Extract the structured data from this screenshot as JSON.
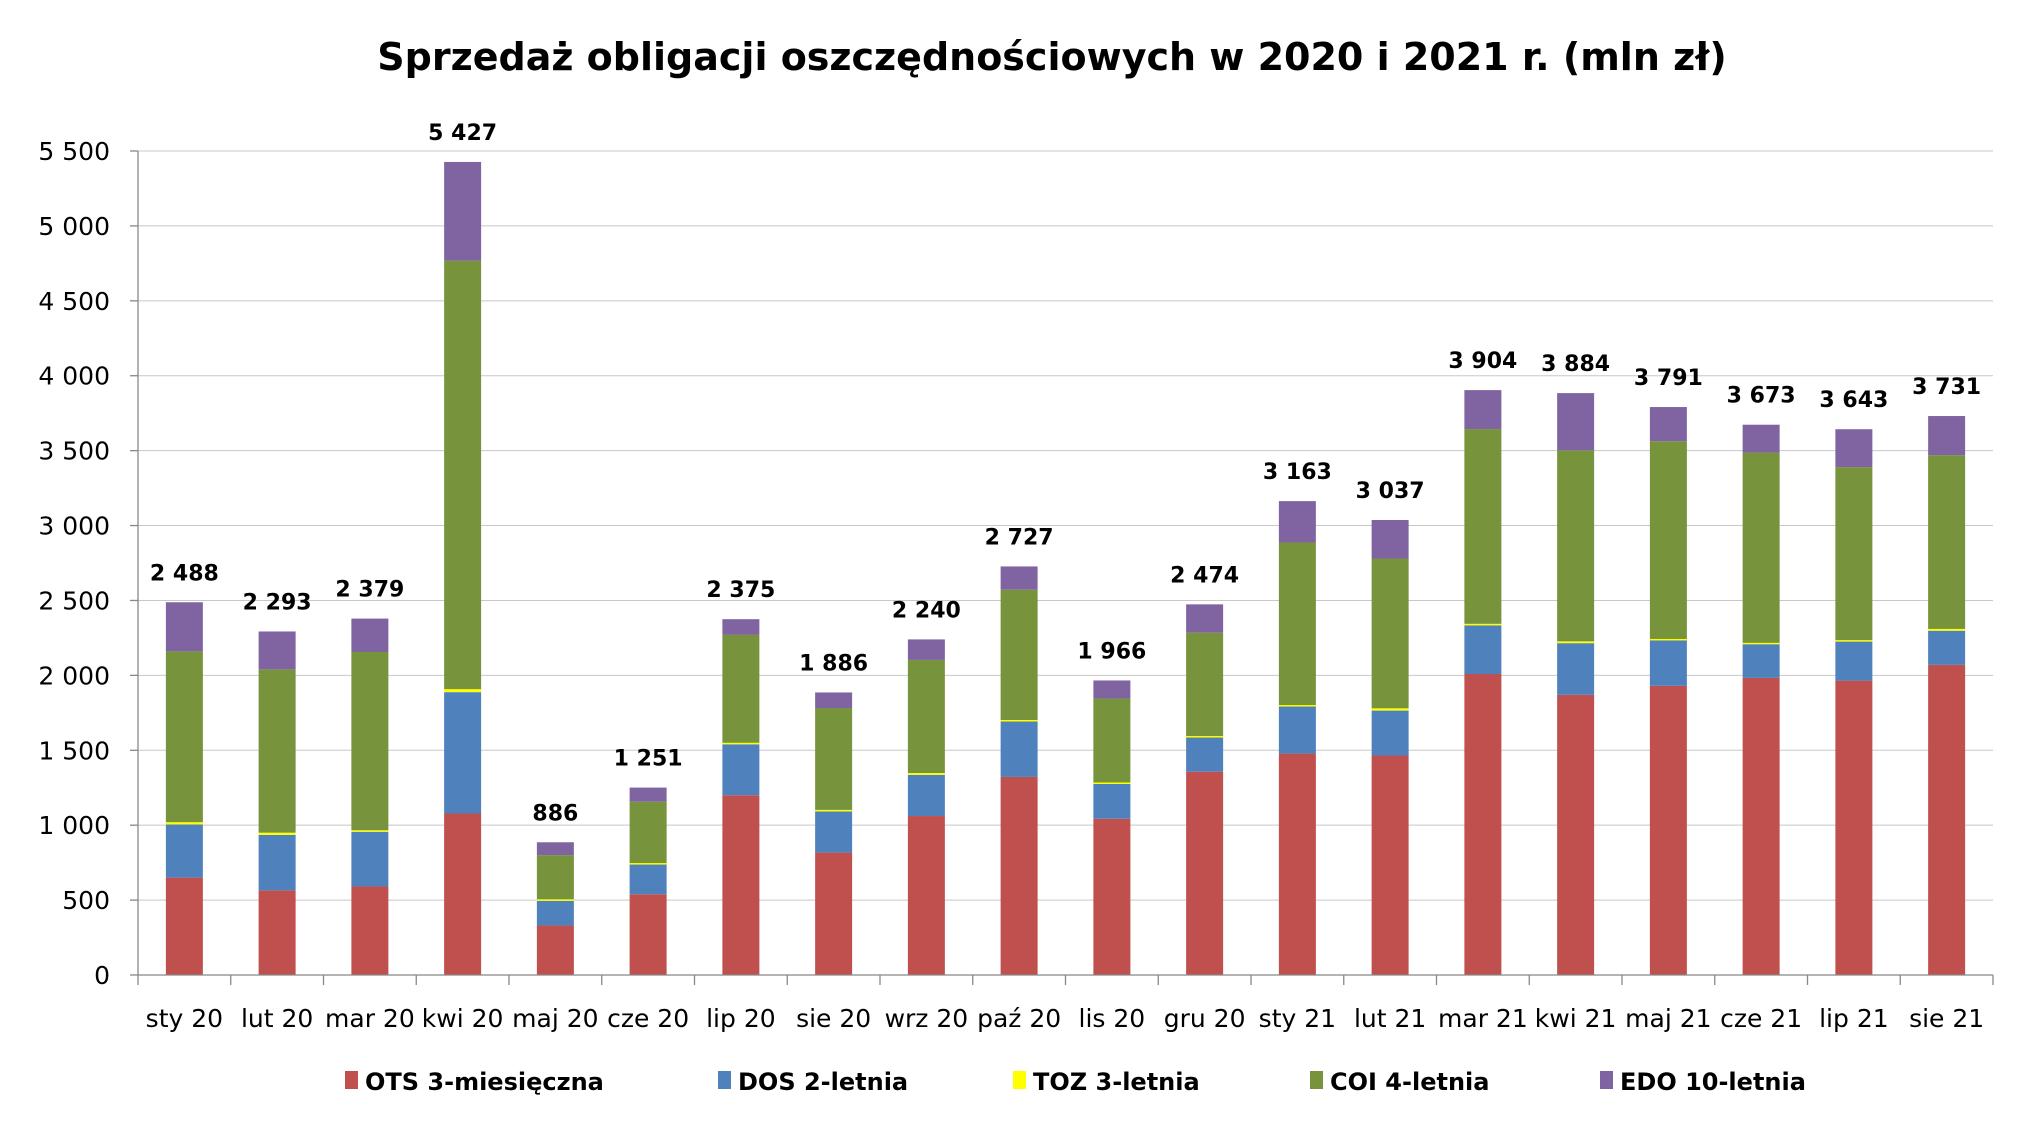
{
  "chart_data": {
    "type": "bar",
    "stacked": true,
    "title": "Sprzedaż obligacji oszczędnościowych w 2020 i 2021 r. (mln zł)",
    "xlabel": "",
    "ylabel": "",
    "ylim": [
      0,
      5500
    ],
    "yticks": [
      0,
      500,
      1000,
      1500,
      2000,
      2500,
      3000,
      3500,
      4000,
      4500,
      5000,
      5500
    ],
    "ytick_labels": [
      "0",
      "500",
      "1 000",
      "1 500",
      "2 000",
      "2 500",
      "3 000",
      "3 500",
      "4 000",
      "4 500",
      "5 000",
      "5 500"
    ],
    "grid": true,
    "legend_position": "bottom",
    "categories": [
      "sty 20",
      "lut 20",
      "mar 20",
      "kwi 20",
      "maj 20",
      "cze 20",
      "lip 20",
      "sie 20",
      "wrz 20",
      "paź 20",
      "lis 20",
      "gru 20",
      "sty 21",
      "lut 21",
      "mar 21",
      "kwi 21",
      "maj 21",
      "cze 21",
      "lip 21",
      "sie 21"
    ],
    "totals": [
      2488,
      2293,
      2379,
      5427,
      886,
      1251,
      2375,
      1886,
      2240,
      2727,
      1966,
      2474,
      3163,
      3037,
      3904,
      3884,
      3791,
      3673,
      3643,
      3731
    ],
    "total_labels": [
      "2 488",
      "2 293",
      "2 379",
      "5 427",
      "886",
      "1 251",
      "2 375",
      "1 886",
      "2 240",
      "2 727",
      "1 966",
      "2 474",
      "3 163",
      "3 037",
      "3 904",
      "3 884",
      "3 791",
      "3 673",
      "3 643",
      "3 731"
    ],
    "series": [
      {
        "name": "OTS 3-miesięczna",
        "color": "#C0504D",
        "values": [
          650,
          565,
          591,
          1078,
          330,
          539,
          1200,
          817,
          1061,
          1322,
          1043,
          1357,
          1478,
          1465,
          2009,
          1870,
          1930,
          1983,
          1965,
          2070
        ]
      },
      {
        "name": "DOS 2-letnia",
        "color": "#4F81BD",
        "values": [
          355,
          370,
          365,
          810,
          165,
          200,
          340,
          275,
          275,
          370,
          232,
          230,
          318,
          300,
          325,
          345,
          308,
          232,
          265,
          228
        ]
      },
      {
        "name": "TOZ 3-letnia",
        "color": "#FFFF00",
        "values": [
          15,
          15,
          10,
          20,
          10,
          8,
          10,
          10,
          12,
          10,
          10,
          8,
          6,
          15,
          10,
          12,
          5,
          2,
          5,
          12
        ]
      },
      {
        "name": "COI 4-letnia",
        "color": "#77933C",
        "values": [
          1140,
          1090,
          1190,
          2860,
          295,
          410,
          720,
          680,
          755,
          870,
          560,
          690,
          1085,
          1000,
          1300,
          1275,
          1320,
          1270,
          1155,
          1160
        ]
      },
      {
        "name": "EDO 10-letnia",
        "color": "#8064A2",
        "values": [
          328,
          253,
          223,
          659,
          86,
          94,
          105,
          104,
          137,
          155,
          121,
          189,
          276,
          257,
          260,
          382,
          228,
          186,
          253,
          261
        ]
      }
    ]
  }
}
